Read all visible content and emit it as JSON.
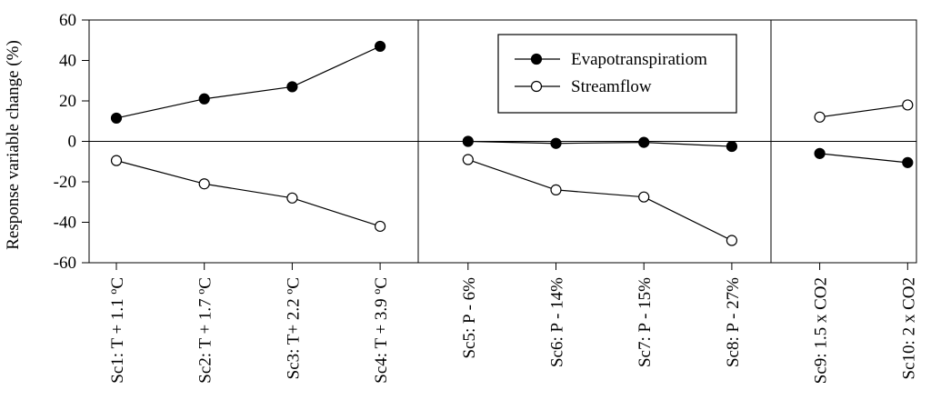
{
  "chart_data": {
    "type": "line",
    "title": "",
    "xlabel": "",
    "ylabel": "Response variable change (%)",
    "ylim": [
      -60,
      60
    ],
    "yticks": [
      -60,
      -40,
      -20,
      0,
      20,
      40,
      60
    ],
    "categories": [
      "Sc1: T + 1.1 ºC",
      "Sc2: T + 1.7 ºC",
      "Sc3: T+ 2.2 ºC",
      "Sc4: T + 3.9 ºC",
      "Sc5: P - 6%",
      "Sc6: P - 14%",
      "Sc7: P - 15%",
      "Sc8: P - 27%",
      "Sc9: 1.5 x CO2",
      "Sc10: 2 x CO2"
    ],
    "groups": [
      [
        0,
        3
      ],
      [
        4,
        7
      ],
      [
        8,
        9
      ]
    ],
    "zero_line": true,
    "legend_position": "top-center",
    "series": [
      {
        "name": "Evapotranspiratiom",
        "marker": "filled-circle",
        "color": "#000000",
        "values": [
          11.5,
          21,
          27,
          47,
          0,
          -1,
          -0.5,
          -2.5,
          -6,
          -10.5
        ]
      },
      {
        "name": "Streamflow",
        "marker": "open-circle",
        "color": "#000000",
        "values": [
          -9.5,
          -21,
          -28,
          -42,
          -9,
          -24,
          -27.5,
          -49,
          12,
          18
        ]
      }
    ]
  }
}
